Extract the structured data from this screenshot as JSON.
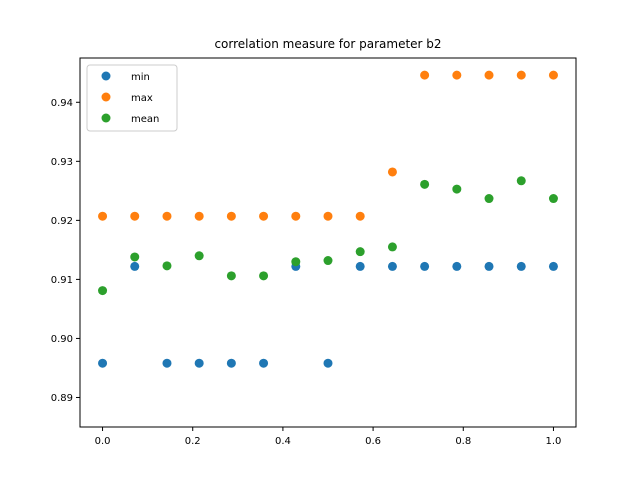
{
  "chart_data": {
    "type": "scatter",
    "title": "correlation measure for parameter b2",
    "xlabel": "",
    "ylabel": "",
    "xlim": [
      -0.05,
      1.05
    ],
    "ylim": [
      0.885,
      0.9475
    ],
    "x_ticks": [
      0.0,
      0.2,
      0.4,
      0.6,
      0.8,
      1.0
    ],
    "x_tick_labels": [
      "0.0",
      "0.2",
      "0.4",
      "0.6",
      "0.8",
      "1.0"
    ],
    "y_ticks": [
      0.89,
      0.9,
      0.91,
      0.92,
      0.93,
      0.94
    ],
    "y_tick_labels": [
      "0.89",
      "0.90",
      "0.91",
      "0.92",
      "0.93",
      "0.94"
    ],
    "grid": false,
    "legend_position": "top-left",
    "x": [
      0.0,
      0.0714,
      0.1429,
      0.2143,
      0.2857,
      0.3571,
      0.4286,
      0.5,
      0.5714,
      0.6429,
      0.7143,
      0.7857,
      0.8571,
      0.9286,
      1.0
    ],
    "series": [
      {
        "name": "min",
        "color": "#1f77b4",
        "values": [
          0.8958,
          0.9122,
          0.8958,
          0.8958,
          0.8958,
          0.8958,
          0.9122,
          0.8958,
          0.9122,
          0.9122,
          0.9122,
          0.9122,
          0.9122,
          0.9122,
          0.9122
        ]
      },
      {
        "name": "max",
        "color": "#ff7f0e",
        "values": [
          0.9207,
          0.9207,
          0.9207,
          0.9207,
          0.9207,
          0.9207,
          0.9207,
          0.9207,
          0.9207,
          0.9282,
          0.9446,
          0.9446,
          0.9446,
          0.9446,
          0.9446
        ]
      },
      {
        "name": "mean",
        "color": "#2ca02c",
        "values": [
          0.9081,
          0.9138,
          0.9123,
          0.914,
          0.9106,
          0.9106,
          0.913,
          0.9132,
          0.9147,
          0.9155,
          0.9261,
          0.9253,
          0.9237,
          0.9267,
          0.9237
        ]
      }
    ]
  }
}
